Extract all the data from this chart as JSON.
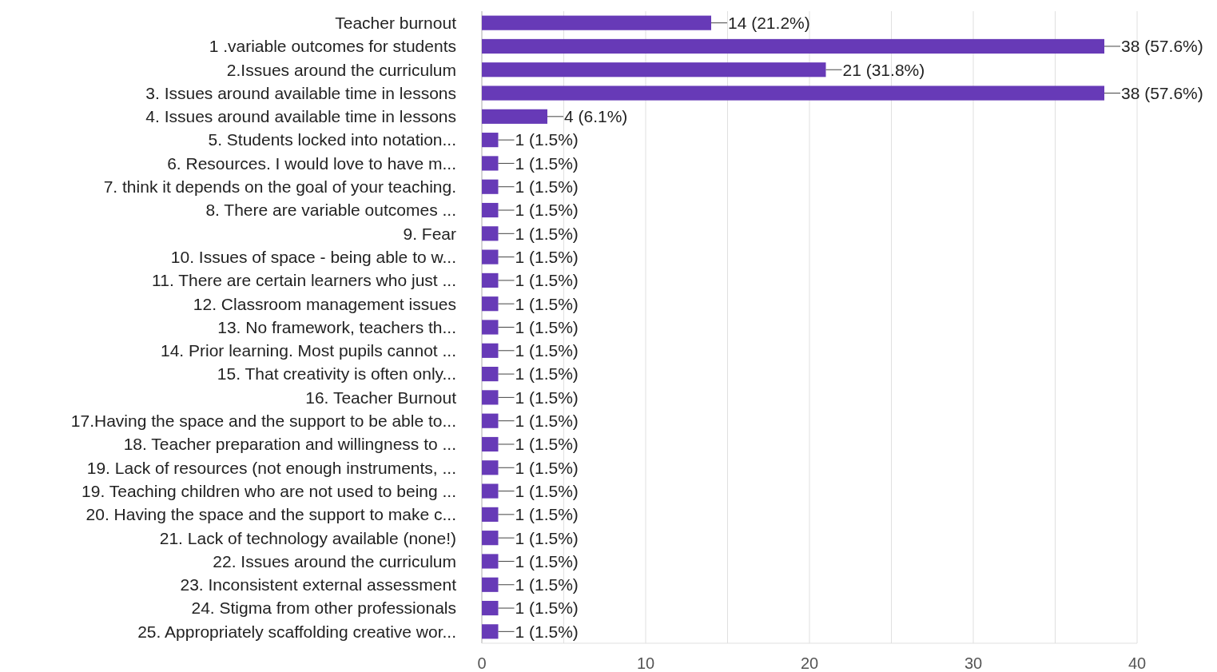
{
  "chart_data": {
    "type": "bar",
    "orientation": "horizontal",
    "categories": [
      "Teacher burnout",
      "1 .variable outcomes for students",
      "2.Issues around the curriculum",
      "3. Issues around available time in lessons",
      "4. Issues around available time in lessons",
      "5. Students locked into notation...",
      "6. Resources. I would love to have m...",
      "7.  think it depends on the goal of your teaching.",
      "8. There are variable outcomes ...",
      "9. Fear",
      "10. Issues of space - being able to w...",
      "11. There are certain learners who just ...",
      "12. Classroom management issues",
      "13. No framework, teachers th...",
      "14. Prior learning. Most pupils cannot ...",
      "15. That creativity is often only...",
      "16. Teacher Burnout",
      "17.Having the space and the support to be able to...",
      "18. Teacher preparation and willingness to ...",
      "19. Lack of resources (not enough instruments, ...",
      "19. Teaching children who are not used to being ...",
      "20. Having the space and the support to make c...",
      "21. Lack of technology available (none!)",
      "22. Issues around the curriculum",
      "23. Inconsistent external assessment",
      "24. Stigma from other professionals",
      "25. Appropriately scaffolding creative wor..."
    ],
    "values": [
      14,
      38,
      21,
      38,
      4,
      1,
      1,
      1,
      1,
      1,
      1,
      1,
      1,
      1,
      1,
      1,
      1,
      1,
      1,
      1,
      1,
      1,
      1,
      1,
      1,
      1,
      1
    ],
    "value_labels": [
      "14 (21.2%)",
      "38 (57.6%)",
      "21 (31.8%)",
      "38 (57.6%)",
      "4 (6.1%)",
      "1 (1.5%)",
      "1 (1.5%)",
      "1 (1.5%)",
      "1 (1.5%)",
      "1 (1.5%)",
      "1 (1.5%)",
      "1 (1.5%)",
      "1 (1.5%)",
      "1 (1.5%)",
      "1 (1.5%)",
      "1 (1.5%)",
      "1 (1.5%)",
      "1 (1.5%)",
      "1 (1.5%)",
      "1 (1.5%)",
      "1 (1.5%)",
      "1 (1.5%)",
      "1 (1.5%)",
      "1 (1.5%)",
      "1 (1.5%)",
      "1 (1.5%)",
      "1 (1.5%)"
    ],
    "color": "#673ab7",
    "xlim": [
      0,
      40
    ],
    "xticks": [
      0,
      {
        "value": 5,
        "label": null
      },
      10,
      {
        "value": 15,
        "label": null
      },
      20,
      {
        "value": 25,
        "label": null
      },
      30,
      {
        "value": 35,
        "label": null
      },
      40
    ],
    "grid": "x"
  }
}
